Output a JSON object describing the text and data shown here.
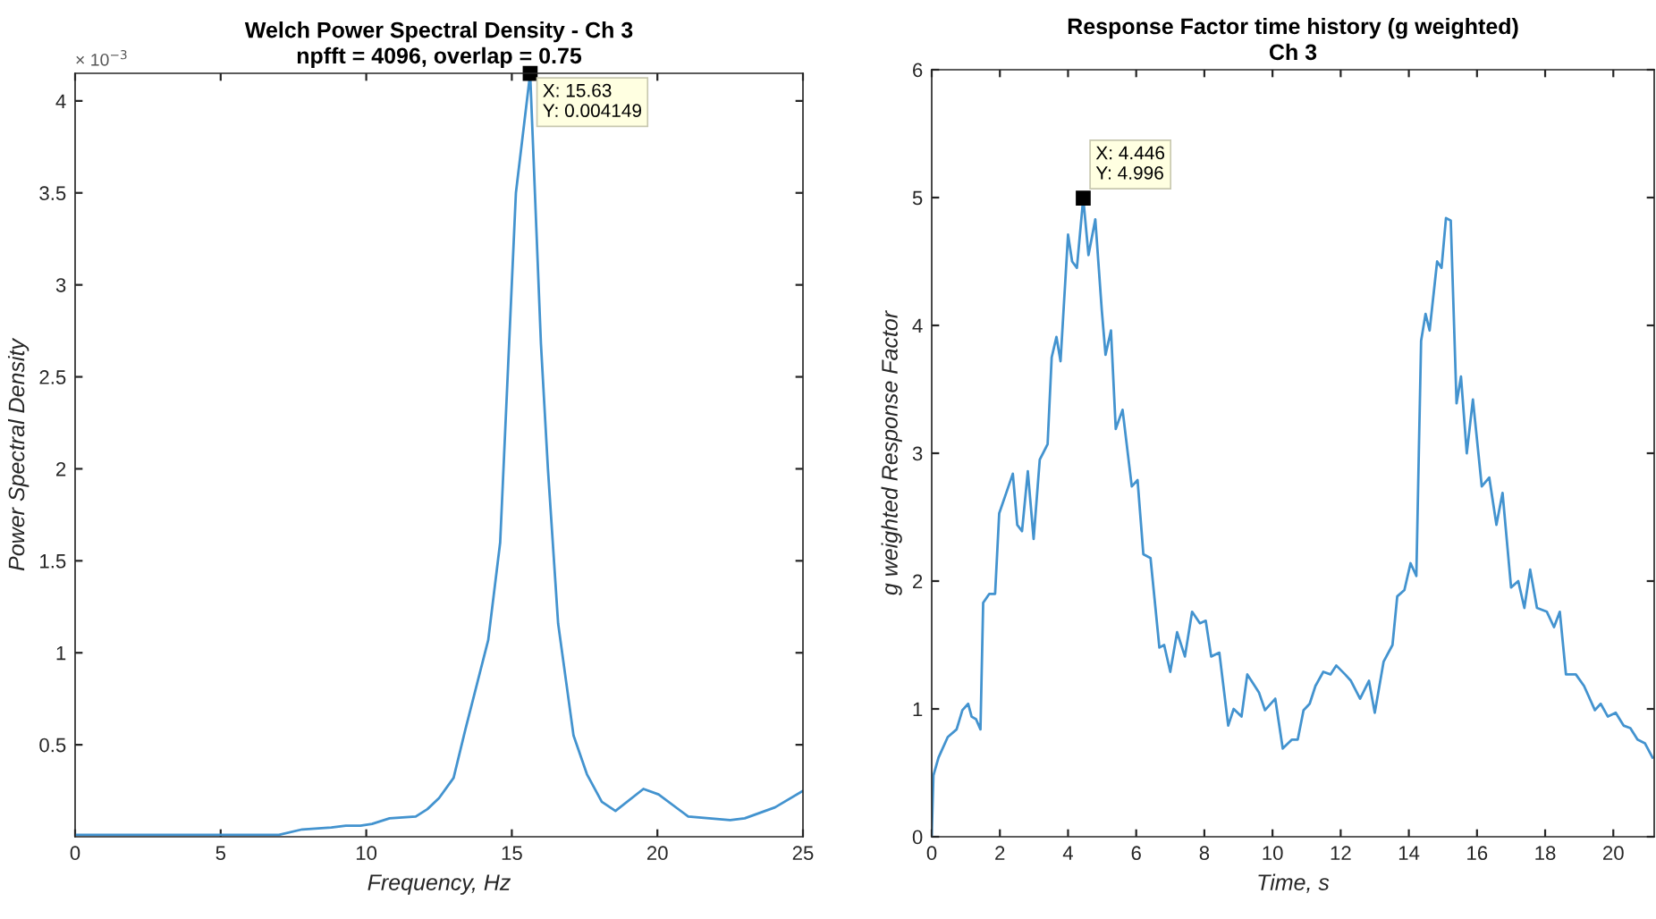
{
  "chart_data": [
    {
      "type": "line",
      "title": "Welch Power Spectral Density - Ch 3\nnpfft = 4096, overlap = 0.75",
      "xlabel": "Frequency, Hz",
      "ylabel": "Power Spectral Density",
      "x": [
        0,
        5,
        7,
        7.8,
        8.8,
        9.3,
        9.8,
        10.2,
        10.8,
        11.7,
        12.1,
        12.5,
        13.0,
        13.4,
        14.19,
        14.6,
        14.87,
        15.14,
        15.63,
        16.0,
        16.24,
        16.59,
        17.12,
        17.58,
        18.09,
        18.56,
        19.52,
        20.04,
        21.06,
        22.5,
        23.0,
        24.04,
        25
      ],
      "series": [
        {
          "color": "#4393cf",
          "values": [
            0.01,
            0.01,
            0.01,
            0.04,
            0.05,
            0.06,
            0.06,
            0.07,
            0.1,
            0.11,
            0.15,
            0.21,
            0.32,
            0.58,
            1.07,
            1.6,
            2.55,
            3.5,
            4.149,
            2.68,
            2.0,
            1.16,
            0.55,
            0.34,
            0.19,
            0.14,
            0.26,
            0.23,
            0.11,
            0.09,
            0.1,
            0.16,
            0.25
          ]
        }
      ],
      "xlim": [
        0,
        25
      ],
      "xticks": [
        0,
        5,
        10,
        15,
        20,
        25
      ],
      "ylim": [
        0,
        4.15
      ],
      "yticks": [
        0.5,
        1,
        1.5,
        2,
        2.5,
        3,
        3.5,
        4
      ],
      "annotations": [
        "× 10$^{−3}$",
        {
          "text": "X: 15.63\nY: 0.004149",
          "x": 15.63,
          "y": 4.149
        }
      ],
      "grid": false,
      "legend": false,
      "marker": "none",
      "line_style": "solid"
    },
    {
      "type": "line",
      "title": "Response Factor time history (g weighted)\nCh 3",
      "xlabel": "Time, s",
      "ylabel": "g weighted Response Factor",
      "x": [
        0,
        0.05,
        0.2,
        0.47,
        0.73,
        0.9,
        1.07,
        1.17,
        1.3,
        1.43,
        1.51,
        1.69,
        1.86,
        1.98,
        2.2,
        2.38,
        2.51,
        2.65,
        2.82,
        2.99,
        3.17,
        3.4,
        3.52,
        3.66,
        3.78,
        4.0,
        4.12,
        4.26,
        4.446,
        4.6,
        4.8,
        4.99,
        5.1,
        5.26,
        5.4,
        5.6,
        5.87,
        6.04,
        6.21,
        6.42,
        6.68,
        6.82,
        7.0,
        7.2,
        7.43,
        7.64,
        7.87,
        8.04,
        8.2,
        8.44,
        8.7,
        8.86,
        9.09,
        9.26,
        9.6,
        9.78,
        10.08,
        10.3,
        10.57,
        10.74,
        10.91,
        11.09,
        11.26,
        11.49,
        11.7,
        11.87,
        12.13,
        12.3,
        12.57,
        12.83,
        13.0,
        13.26,
        13.52,
        13.66,
        13.87,
        14.05,
        14.22,
        14.36,
        14.49,
        14.61,
        14.83,
        14.96,
        15.09,
        15.23,
        15.4,
        15.53,
        15.7,
        15.88,
        16.14,
        16.36,
        16.57,
        16.75,
        17.0,
        17.21,
        17.39,
        17.56,
        17.76,
        18.05,
        18.26,
        18.43,
        18.61,
        18.9,
        19.14,
        19.46,
        19.63,
        19.84,
        20.07,
        20.3,
        20.5,
        20.71,
        20.93,
        21.15
      ],
      "series": [
        {
          "color": "#4393cf",
          "values": [
            0.01,
            0.48,
            0.62,
            0.78,
            0.84,
            0.99,
            1.04,
            0.94,
            0.92,
            0.84,
            1.83,
            1.9,
            1.9,
            2.53,
            2.7,
            2.84,
            2.44,
            2.39,
            2.86,
            2.33,
            2.95,
            3.07,
            3.75,
            3.91,
            3.72,
            4.71,
            4.5,
            4.45,
            4.996,
            4.55,
            4.83,
            4.12,
            3.77,
            3.96,
            3.19,
            3.34,
            2.74,
            2.79,
            2.21,
            2.18,
            1.48,
            1.5,
            1.29,
            1.6,
            1.41,
            1.76,
            1.67,
            1.69,
            1.41,
            1.44,
            0.87,
            1.0,
            0.94,
            1.27,
            1.13,
            0.99,
            1.08,
            0.69,
            0.76,
            0.76,
            0.99,
            1.04,
            1.18,
            1.29,
            1.27,
            1.34,
            1.27,
            1.22,
            1.08,
            1.22,
            0.97,
            1.37,
            1.5,
            1.88,
            1.93,
            2.14,
            2.04,
            3.88,
            4.09,
            3.96,
            4.5,
            4.45,
            4.84,
            4.82,
            3.39,
            3.6,
            3.0,
            3.42,
            2.74,
            2.81,
            2.44,
            2.69,
            1.95,
            2.0,
            1.79,
            2.09,
            1.79,
            1.76,
            1.64,
            1.76,
            1.27,
            1.27,
            1.18,
            0.99,
            1.04,
            0.94,
            0.97,
            0.87,
            0.85,
            0.76,
            0.73,
            0.62
          ]
        }
      ],
      "xlim": [
        0,
        21.2
      ],
      "xticks": [
        0,
        2,
        4,
        6,
        8,
        10,
        12,
        14,
        16,
        18,
        20
      ],
      "ylim": [
        0,
        6
      ],
      "yticks": [
        0,
        1,
        2,
        3,
        4,
        5,
        6
      ],
      "annotations": [
        {
          "text": "X: 4.446\nY: 4.996",
          "x": 4.446,
          "y": 4.996
        }
      ],
      "grid": false,
      "legend": false,
      "marker": "none",
      "line_style": "solid"
    }
  ]
}
